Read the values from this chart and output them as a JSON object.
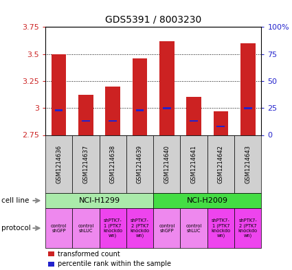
{
  "title": "GDS5391 / 8003230",
  "samples": [
    "GSM1214636",
    "GSM1214637",
    "GSM1214638",
    "GSM1214639",
    "GSM1214640",
    "GSM1214641",
    "GSM1214642",
    "GSM1214643"
  ],
  "bar_bottoms": [
    2.75,
    2.75,
    2.75,
    2.75,
    2.75,
    2.75,
    2.75,
    2.75
  ],
  "bar_tops": [
    3.5,
    3.12,
    3.2,
    3.46,
    3.62,
    3.1,
    2.97,
    3.6
  ],
  "percentile_values": [
    2.98,
    2.88,
    2.88,
    2.98,
    3.0,
    2.88,
    2.83,
    3.0
  ],
  "ylim": [
    2.75,
    3.75
  ],
  "yticks": [
    2.75,
    3.0,
    3.25,
    3.5,
    3.75
  ],
  "ytick_labels": [
    "2.75",
    "3",
    "3.25",
    "3.5",
    "3.75"
  ],
  "right_yticks": [
    0,
    25,
    50,
    75,
    100
  ],
  "right_ytick_labels": [
    "0",
    "25",
    "50",
    "75",
    "100%"
  ],
  "bar_color": "#cc2222",
  "percentile_color": "#2222cc",
  "cell_line_groups": [
    {
      "label": "NCI-H1299",
      "start": 0,
      "end": 3,
      "color": "#aaeaaa"
    },
    {
      "label": "NCI-H2009",
      "start": 4,
      "end": 7,
      "color": "#44dd44"
    }
  ],
  "protocols": [
    {
      "label": "control\nshGFP",
      "idx": 0,
      "color": "#ee88ee"
    },
    {
      "label": "control\nshLUC",
      "idx": 1,
      "color": "#ee88ee"
    },
    {
      "label": "shPTK7-\n1 (PTK7\nknockdo\nwn)",
      "idx": 2,
      "color": "#ee44ee"
    },
    {
      "label": "shPTK7-\n2 (PTK7\nknockdo\nwn)",
      "idx": 3,
      "color": "#ee44ee"
    },
    {
      "label": "control\nshGFP",
      "idx": 4,
      "color": "#ee88ee"
    },
    {
      "label": "control\nshLUC",
      "idx": 5,
      "color": "#ee88ee"
    },
    {
      "label": "shPTK7-\n1 (PTK7\nknockdo\nwn)",
      "idx": 6,
      "color": "#ee44ee"
    },
    {
      "label": "shPTK7-\n2 (PTK7\nknockdo\nwn)",
      "idx": 7,
      "color": "#ee44ee"
    }
  ],
  "legend_items": [
    {
      "label": "transformed count",
      "color": "#cc2222"
    },
    {
      "label": "percentile rank within the sample",
      "color": "#2222cc"
    }
  ],
  "bar_color_red": "#cc2222",
  "bar_color_blue": "#2222cc",
  "sample_box_color": "#d0d0d0",
  "ylabel_left_color": "#cc2222",
  "ylabel_right_color": "#2222cc"
}
